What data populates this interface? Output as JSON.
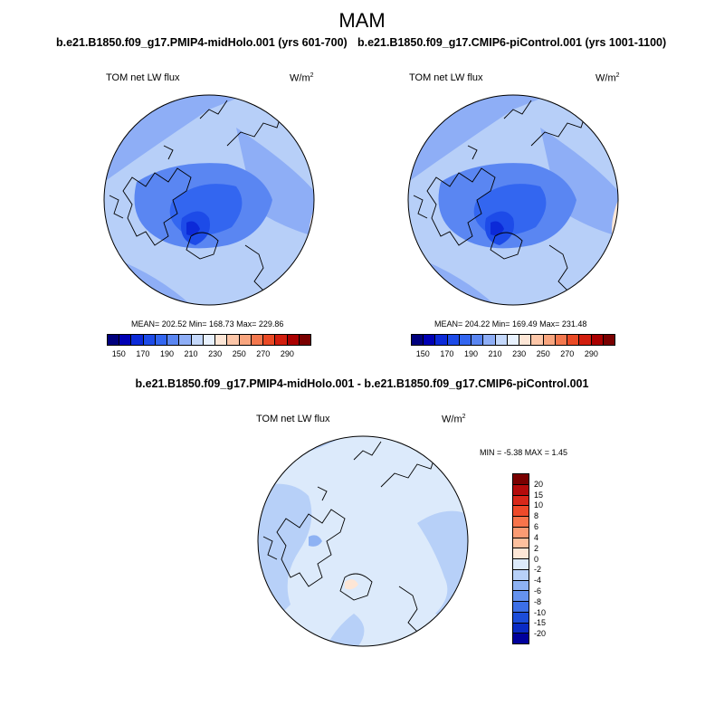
{
  "season": "MAM",
  "panels": [
    {
      "title": "b.e21.B1850.f09_g17.PMIP4-midHolo.001 (yrs 601-700)",
      "variable": "TOM net LW flux",
      "units": "W/m",
      "units_sup": "2",
      "stats": "MEAN= 202.52  Min= 168.73  Max= 229.86"
    },
    {
      "title": "b.e21.B1850.f09_g17.CMIP6-piControl.001 (yrs 1001-1100)",
      "variable": "TOM net LW flux",
      "units": "W/m",
      "units_sup": "2",
      "stats": "MEAN= 204.22  Min= 169.49  Max= 231.48"
    }
  ],
  "difference": {
    "title": "b.e21.B1850.f09_g17.PMIP4-midHolo.001 - b.e21.B1850.f09_g17.CMIP6-piControl.001",
    "variable": "TOM net LW flux",
    "units": "W/m",
    "units_sup": "2",
    "stats": "MIN =  -5.38 MAX =   1.45"
  },
  "colorbar_top": {
    "colors": [
      "#00007d",
      "#0000b4",
      "#0c2ad8",
      "#1d4be8",
      "#3366f0",
      "#5a86f2",
      "#8eaef6",
      "#c4d8fb",
      "#e8f1fd",
      "#fde6d6",
      "#fcc6a8",
      "#f8a57e",
      "#f3784e",
      "#ea4a25",
      "#d21e0e",
      "#aa0000",
      "#7a0000"
    ],
    "labels": [
      "150",
      "170",
      "190",
      "210",
      "230",
      "250",
      "270",
      "290"
    ]
  },
  "colorbar_diff": {
    "colors": [
      "#7a0000",
      "#b40b0b",
      "#d8281a",
      "#ee4a2a",
      "#f8744b",
      "#fb9b73",
      "#fdc09e",
      "#fde6d6",
      "#dceafb",
      "#b7d0f8",
      "#8eb2f3",
      "#6592ee",
      "#3c6fe6",
      "#1c4dd9",
      "#0a2bc4",
      "#00009c"
    ],
    "labels": [
      "20",
      "15",
      "10",
      "8",
      "6",
      "4",
      "2",
      "0",
      "-2",
      "-4",
      "-6",
      "-8",
      "-10",
      "-15",
      "-20"
    ]
  }
}
